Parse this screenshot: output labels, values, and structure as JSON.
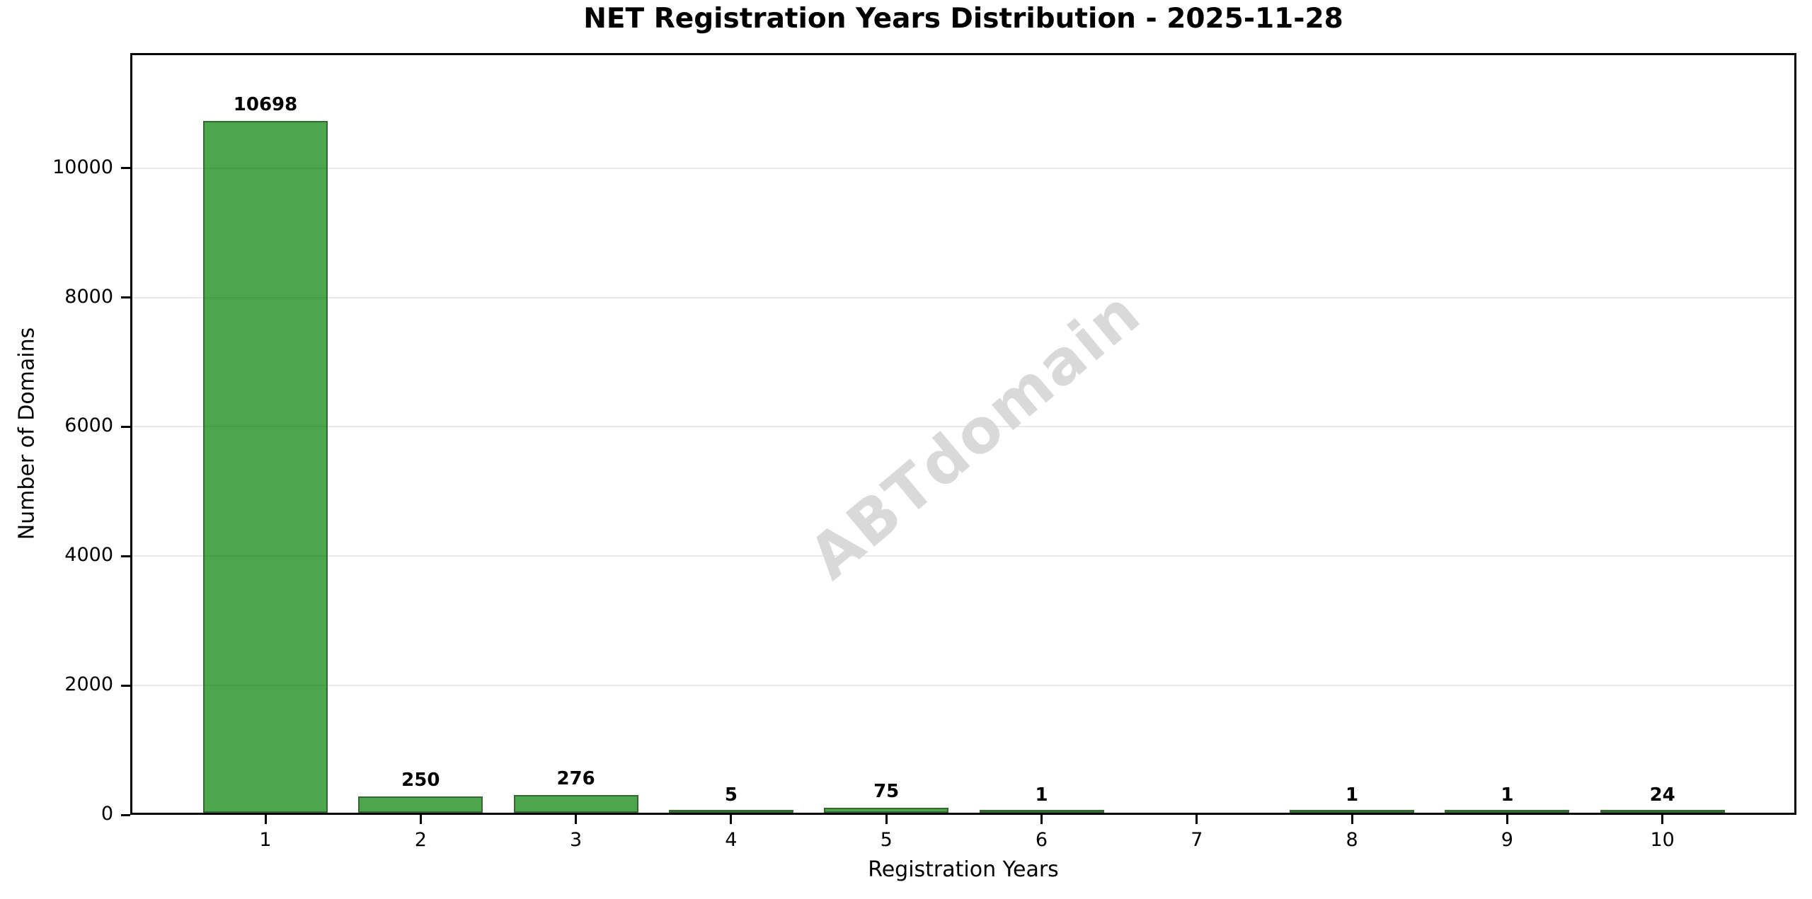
{
  "watermark": {
    "text": "ABTdomain"
  },
  "chart_data": {
    "type": "bar",
    "title": "NET Registration Years Distribution - 2025-11-28",
    "xlabel": "Registration Years",
    "ylabel": "Number of Domains",
    "categories": [
      "1",
      "2",
      "3",
      "4",
      "5",
      "6",
      "7",
      "8",
      "9",
      "10"
    ],
    "values": [
      10698,
      250,
      276,
      5,
      75,
      1,
      0,
      1,
      1,
      24
    ],
    "bar_labels": [
      "10698",
      "250",
      "276",
      "5",
      "75",
      "1",
      "",
      "1",
      "1",
      "24"
    ],
    "yticks": [
      0,
      2000,
      4000,
      6000,
      8000,
      10000
    ],
    "ytick_labels": [
      "0",
      "2000",
      "4000",
      "6000",
      "8000",
      "10000"
    ],
    "ylim": [
      0,
      11780
    ],
    "grid": "horizontal",
    "legend_position": "none",
    "colors": {
      "bar_fill": "rgba(0,128,0,0.7)",
      "bar_edge": "#346934",
      "grid": "#e8e8e8",
      "spine": "#000000",
      "watermark": "#d9d9d9",
      "background": "#ffffff",
      "text": "#000000"
    }
  }
}
